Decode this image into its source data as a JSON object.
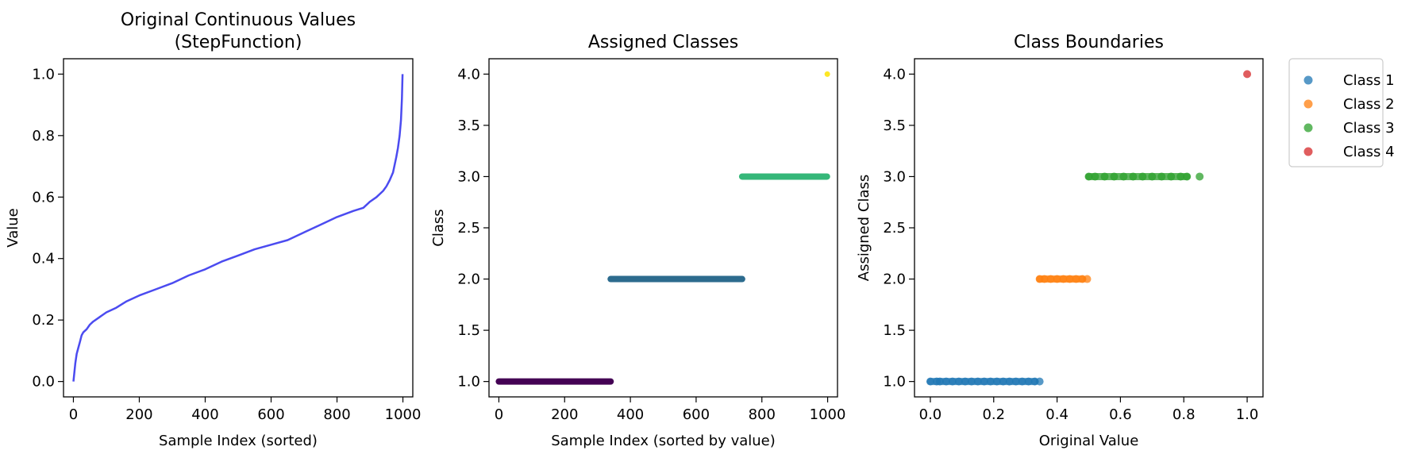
{
  "chart_data": [
    {
      "type": "line",
      "title": "Original Continuous Values",
      "subtitle": "(StepFunction)",
      "xlabel": "Sample Index (sorted)",
      "ylabel": "Value",
      "xlim": [
        -30,
        1030
      ],
      "ylim": [
        -0.05,
        1.05
      ],
      "xticks": [
        0,
        200,
        400,
        600,
        800,
        1000
      ],
      "yticks": [
        0.0,
        0.2,
        0.4,
        0.6,
        0.8,
        1.0
      ],
      "color": "#4b4bf0",
      "series": [
        {
          "x": [
            0,
            3,
            6,
            10,
            15,
            20,
            25,
            30,
            40,
            50,
            60,
            80,
            100,
            130,
            160,
            200,
            250,
            300,
            350,
            400,
            450,
            500,
            550,
            600,
            650,
            700,
            750,
            800,
            850,
            880,
            900,
            920,
            940,
            950,
            960,
            970,
            980,
            985,
            990,
            994,
            997,
            999
          ],
          "y": [
            0.0,
            0.03,
            0.06,
            0.09,
            0.11,
            0.13,
            0.15,
            0.16,
            0.17,
            0.185,
            0.195,
            0.21,
            0.225,
            0.24,
            0.26,
            0.28,
            0.3,
            0.32,
            0.345,
            0.365,
            0.39,
            0.41,
            0.43,
            0.445,
            0.46,
            0.485,
            0.51,
            0.535,
            0.555,
            0.565,
            0.585,
            0.6,
            0.62,
            0.635,
            0.655,
            0.68,
            0.73,
            0.76,
            0.8,
            0.85,
            0.92,
            1.0
          ]
        }
      ]
    },
    {
      "type": "scatter",
      "title": "Assigned Classes",
      "xlabel": "Sample Index (sorted by value)",
      "ylabel": "Class",
      "xlim": [
        -30,
        1030
      ],
      "ylim": [
        0.85,
        4.15
      ],
      "xticks": [
        0,
        200,
        400,
        600,
        800,
        1000
      ],
      "yticks": [
        1.0,
        1.5,
        2.0,
        2.5,
        3.0,
        3.5,
        4.0
      ],
      "series": [
        {
          "class": 1,
          "x_start": 0,
          "x_end": 340,
          "y": 1.0,
          "color": "#440154"
        },
        {
          "class": 2,
          "x_start": 340,
          "x_end": 740,
          "y": 2.0,
          "color": "#2c6b8e"
        },
        {
          "class": 3,
          "x_start": 740,
          "x_end": 998,
          "y": 3.0,
          "color": "#35b779"
        },
        {
          "class": 4,
          "x_start": 999,
          "x_end": 999,
          "y": 4.0,
          "color": "#fde725"
        }
      ]
    },
    {
      "type": "scatter",
      "title": "Class Boundaries",
      "xlabel": "Original Value",
      "ylabel": "Assigned Class",
      "xlim": [
        -0.05,
        1.05
      ],
      "ylim": [
        0.85,
        4.15
      ],
      "xticks": [
        0.0,
        0.2,
        0.4,
        0.6,
        0.8,
        1.0
      ],
      "yticks": [
        1.0,
        1.5,
        2.0,
        2.5,
        3.0,
        3.5,
        4.0
      ],
      "legend_placement": "outside-top-right",
      "series": [
        {
          "name": "Class 1",
          "y": 1.0,
          "x_points": [
            0.0,
            0.02,
            0.03,
            0.05,
            0.07,
            0.09,
            0.11,
            0.13,
            0.15,
            0.17,
            0.19,
            0.21,
            0.23,
            0.25,
            0.27,
            0.29,
            0.31,
            0.33,
            0.345
          ],
          "color": "#1f77b4"
        },
        {
          "name": "Class 2",
          "y": 2.0,
          "x_points": [
            0.345,
            0.36,
            0.38,
            0.4,
            0.42,
            0.44,
            0.46,
            0.48,
            0.495
          ],
          "color": "#ff7f0e"
        },
        {
          "name": "Class 3",
          "y": 3.0,
          "x_points": [
            0.5,
            0.52,
            0.55,
            0.58,
            0.61,
            0.64,
            0.67,
            0.7,
            0.73,
            0.76,
            0.79,
            0.81,
            0.85
          ],
          "color": "#2ca02c"
        },
        {
          "name": "Class 4",
          "y": 4.0,
          "x_points": [
            1.0
          ],
          "color": "#d62728"
        }
      ]
    }
  ]
}
